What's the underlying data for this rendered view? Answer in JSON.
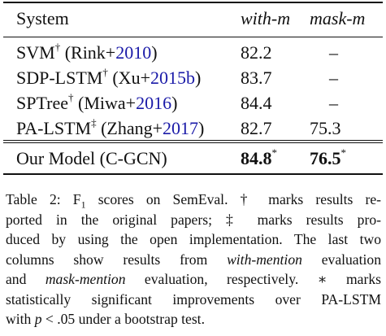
{
  "table": {
    "headers": {
      "system": "System",
      "with_m": "with-m",
      "mask_m": "mask-m"
    },
    "rows": [
      {
        "system": "SVM",
        "mark": "†",
        "cite_open": "(Rink+",
        "cite_year": "2010",
        "cite_close": ")",
        "with_m": "82.2",
        "mask_m": "–"
      },
      {
        "system": "SDP-LSTM",
        "mark": "†",
        "cite_open": "(Xu+",
        "cite_year": "2015b",
        "cite_close": ")",
        "with_m": "83.7",
        "mask_m": "–"
      },
      {
        "system": "SPTree",
        "mark": "†",
        "cite_open": "(Miwa+",
        "cite_year": "2016",
        "cite_close": ")",
        "with_m": "84.4",
        "mask_m": "–"
      },
      {
        "system": "PA-LSTM",
        "mark": "‡",
        "cite_open": "(Zhang+",
        "cite_year": "2017",
        "cite_close": ")",
        "with_m": "82.7",
        "mask_m": "75.3"
      }
    ],
    "ours": {
      "system": "Our Model (C-GCN)",
      "with_m": "84.8",
      "mask_m": "76.5",
      "sig": "*"
    }
  },
  "caption": {
    "line1_a": "Table 2: F",
    "line1_sub": "1",
    "line1_b": " scores on SemEval.  † marks results re-",
    "line2": "ported in the original papers; ‡ marks results pro-",
    "line3": "duced by using the open implementation. The last two",
    "line4_a": "columns show results from ",
    "line4_it": "with-mention",
    "line4_b": " evaluation",
    "line5_a": "and ",
    "line5_it": "mask-mention",
    "line5_b": " evaluation, respectively.  ∗ marks",
    "line6": "statistically significant improvements over PA-LSTM",
    "line7_a": "with ",
    "line7_p": "p",
    "line7_b": " < .05 under a bootstrap test."
  }
}
